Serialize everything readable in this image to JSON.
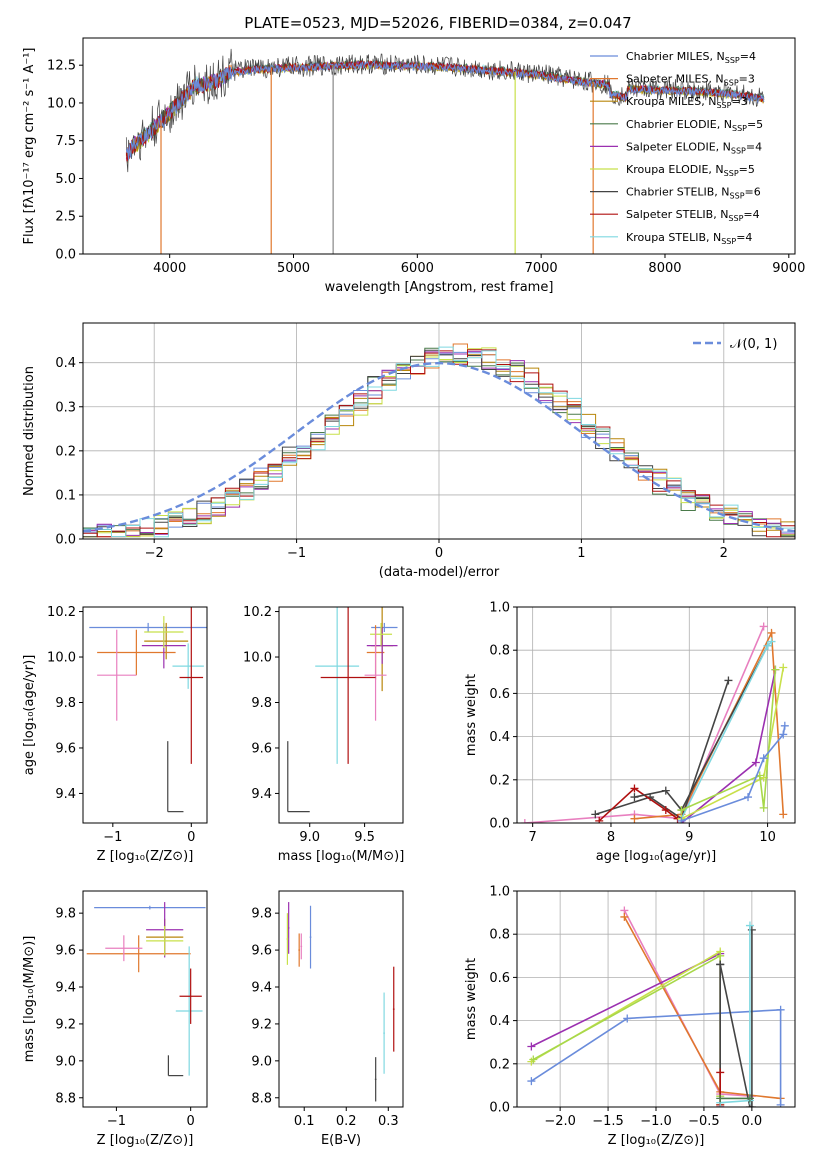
{
  "figure": {
    "title": "PLATE=0523, MJD=52026, FIBERID=0384, z=0.047"
  },
  "colors": {
    "chabrier_miles": "#6a8cdb",
    "salpeter_miles": "#e0782e",
    "kroupa_miles": "#b8860b",
    "chabrier_elodie": "#4a7a4a",
    "salpeter_elodie": "#9b30b0",
    "kroupa_elodie": "#c8e04a",
    "chabrier_stelib": "#444444",
    "salpeter_stelib": "#b01010",
    "kroupa_stelib": "#7fd8e0",
    "pink": "#e87fbf",
    "lime": "#a8d84a",
    "gray": "#888888"
  },
  "chart_data": [
    {
      "id": "spectrum",
      "type": "line",
      "xlabel": "wavelength [Angstrom, rest frame]",
      "ylabel": "Flux [fλ10⁻¹⁷ erg cm⁻² s⁻¹ A⁻¹]",
      "xlim": [
        3300,
        9050
      ],
      "ylim": [
        0,
        14.3
      ],
      "xticks": [
        4000,
        5000,
        6000,
        7000,
        8000,
        9000
      ],
      "xtick_labels": [
        "4000",
        "5000",
        "6000",
        "7000",
        "8000",
        "9000"
      ],
      "yticks": [
        0,
        2.5,
        5,
        7.5,
        10,
        12.5
      ],
      "ytick_labels": [
        "0.0",
        "2.5",
        "5.0",
        "7.5",
        "10.0",
        "12.5"
      ],
      "legend": [
        {
          "model": "Chabrier MILES",
          "n": "4",
          "color": "#6a8cdb"
        },
        {
          "model": "Salpeter MILES",
          "n": "3",
          "color": "#e0782e"
        },
        {
          "model": "Kroupa MILES",
          "n": "3",
          "color": "#b8860b"
        },
        {
          "model": "Chabrier ELODIE",
          "n": "5",
          "color": "#4a7a4a"
        },
        {
          "model": "Salpeter ELODIE",
          "n": "4",
          "color": "#9b30b0"
        },
        {
          "model": "Kroupa ELODIE",
          "n": "5",
          "color": "#c8e04a"
        },
        {
          "model": "Chabrier STELIB",
          "n": "6",
          "color": "#444444"
        },
        {
          "model": "Salpeter STELIB",
          "n": "4",
          "color": "#b01010"
        },
        {
          "model": "Kroupa STELIB",
          "n": "4",
          "color": "#7fd8e0"
        }
      ],
      "legend_nssp": "N",
      "legend_nssp_sub": "SSP",
      "legend_placement": "right",
      "envelope": {
        "x": [
          3650,
          3700,
          3800,
          3900,
          4000,
          4100,
          4200,
          4300,
          4400,
          4500,
          4700,
          5000,
          5300,
          5600,
          6000,
          6300,
          6600,
          7000,
          7300,
          7500,
          7700,
          8000,
          8300,
          8600,
          8800
        ],
        "y": [
          6.5,
          7.2,
          7.8,
          8.6,
          9.4,
          10.3,
          11.2,
          11.3,
          11.6,
          12.1,
          12.3,
          12.4,
          12.5,
          12.6,
          12.5,
          12.4,
          12.2,
          11.9,
          11.5,
          11.3,
          11.0,
          10.9,
          10.8,
          10.6,
          10.3
        ]
      },
      "drops": [
        {
          "x": 3930,
          "y": 0,
          "color": "#e0782e"
        },
        {
          "x": 4820,
          "y": 0,
          "color": "#e0782e"
        },
        {
          "x": 5320,
          "y": 0,
          "color": "#888888"
        },
        {
          "x": 6790,
          "y": 0,
          "color": "#c8e04a"
        },
        {
          "x": 7420,
          "y": 0,
          "color": "#e0782e"
        }
      ]
    },
    {
      "id": "residuals",
      "type": "line",
      "xlabel": "(data-model)/error",
      "ylabel": "Normed distribution",
      "xlim": [
        -2.5,
        2.5
      ],
      "ylim": [
        0,
        0.49
      ],
      "xticks": [
        -2,
        -1,
        0,
        1,
        2
      ],
      "xtick_labels": [
        "−2",
        "−1",
        "0",
        "1",
        "2"
      ],
      "yticks": [
        0,
        0.1,
        0.2,
        0.3,
        0.4
      ],
      "ytick_labels": [
        "0.0",
        "0.1",
        "0.2",
        "0.3",
        "0.4"
      ],
      "grid": true,
      "legend": [
        {
          "label": "𝒩(0, 1)",
          "color": "#6a8cdb"
        }
      ],
      "legend_placement": "top-right",
      "curve": {
        "name": "𝒩(0, 1)",
        "mu": 0,
        "sigma": 1
      },
      "bin_width": 0.1
    },
    {
      "id": "age-vs-z",
      "type": "scatter",
      "xlabel": "Z [log₁₀(Z/Z⊙)]",
      "ylabel": "age  [log₁₀(age/yr)]",
      "xlim": [
        -1.38,
        0.2
      ],
      "ylim": [
        9.27,
        10.22
      ],
      "xticks": [
        -1,
        0
      ],
      "xtick_labels": [
        "−1",
        "0"
      ],
      "yticks": [
        9.4,
        9.6,
        9.8,
        10.0,
        10.2
      ],
      "ytick_labels": [
        "9.4",
        "9.6",
        "9.8",
        "10.0",
        "10.2"
      ],
      "points": [
        {
          "x": -0.55,
          "y": 10.13,
          "xerr": 0.75,
          "yerr": 0.02,
          "color": "#6a8cdb"
        },
        {
          "x": -0.32,
          "y": 10.07,
          "xerr": 0.28,
          "yerr": 0.08,
          "color": "#b8860b"
        },
        {
          "x": -0.7,
          "y": 10.02,
          "xerr": 0.5,
          "yerr": 0.1,
          "color": "#e0782e"
        },
        {
          "x": -0.35,
          "y": 10.05,
          "xerr": 0.28,
          "yerr": 0.1,
          "color": "#9b30b0"
        },
        {
          "x": -0.35,
          "y": 10.11,
          "xerr": 0.25,
          "yerr": 0.07,
          "color": "#c8e04a"
        },
        {
          "x": -0.95,
          "y": 9.92,
          "xerr": 0.25,
          "yerr": 0.2,
          "color": "#e87fbf"
        },
        {
          "x": -0.04,
          "y": 9.96,
          "xerr": 0.2,
          "yerr": 0.1,
          "color": "#7fd8e0"
        },
        {
          "x": 0.0,
          "y": 9.91,
          "xerr": 0.15,
          "yerr": 0.38,
          "color": "#b01010"
        },
        {
          "x": -0.2,
          "y": 9.32,
          "xerr": 0.1,
          "yerr": 0.31,
          "color": "#444444",
          "half": true
        }
      ]
    },
    {
      "id": "age-vs-mass",
      "type": "scatter",
      "xlabel": "mass [log₁₀(M/M⊙)]",
      "ylabel": "",
      "xlim": [
        8.72,
        9.85
      ],
      "ylim": [
        9.27,
        10.22
      ],
      "xticks": [
        9.0,
        9.5
      ],
      "xtick_labels": [
        "9.0",
        "9.5"
      ],
      "yticks": [
        9.4,
        9.6,
        9.8,
        10.0,
        10.2
      ],
      "ytick_labels": [
        "9.4",
        "9.6",
        "9.8",
        "10.0",
        "10.2"
      ],
      "points": [
        {
          "x": 9.68,
          "y": 10.13,
          "xerr": 0.12,
          "yerr": 0.02,
          "color": "#6a8cdb"
        },
        {
          "x": 9.66,
          "y": 10.05,
          "xerr": 0.1,
          "yerr": 0.2,
          "color": "#b8860b"
        },
        {
          "x": 9.6,
          "y": 10.02,
          "xerr": 0.08,
          "yerr": 0.12,
          "color": "#e0782e"
        },
        {
          "x": 9.66,
          "y": 10.05,
          "xerr": 0.14,
          "yerr": 0.08,
          "color": "#9b30b0"
        },
        {
          "x": 9.65,
          "y": 10.1,
          "xerr": 0.1,
          "yerr": 0.05,
          "color": "#c8e04a"
        },
        {
          "x": 9.6,
          "y": 9.92,
          "xerr": 0.1,
          "yerr": 0.2,
          "color": "#e87fbf"
        },
        {
          "x": 9.25,
          "y": 9.96,
          "xerr": 0.2,
          "yerr": 0.43,
          "color": "#7fd8e0"
        },
        {
          "x": 9.35,
          "y": 9.91,
          "xerr": 0.25,
          "yerr": 0.38,
          "color": "#b01010"
        },
        {
          "x": 8.9,
          "y": 9.32,
          "xerr": 0.1,
          "yerr": 0.31,
          "color": "#444444",
          "half": true
        }
      ]
    },
    {
      "id": "mass-weight-vs-age",
      "type": "line",
      "xlabel": "age  [log₁₀(age/yr)]",
      "ylabel": "mass weight",
      "xlim": [
        6.8,
        10.35
      ],
      "ylim": [
        0,
        1.0
      ],
      "xticks": [
        7,
        8,
        9,
        10
      ],
      "xtick_labels": [
        "7",
        "8",
        "9",
        "10"
      ],
      "yticks": [
        0,
        0.2,
        0.4,
        0.6,
        0.8,
        1.0
      ],
      "ytick_labels": [
        "0.0",
        "0.2",
        "0.4",
        "0.6",
        "0.8",
        "1.0"
      ],
      "grid": true,
      "series": [
        {
          "color": "#e87fbf",
          "x": [
            6.9,
            8.3,
            8.9,
            9.95
          ],
          "y": [
            0.0,
            0.04,
            0.02,
            0.91
          ]
        },
        {
          "color": "#e0782e",
          "x": [
            8.3,
            8.9,
            10.05,
            10.2
          ],
          "y": [
            0.02,
            0.04,
            0.88,
            0.04
          ]
        },
        {
          "color": "#444444",
          "x": [
            7.8,
            8.5,
            8.9,
            9.5
          ],
          "y": [
            0.04,
            0.12,
            0.02,
            0.66
          ]
        },
        {
          "color": "#b01010",
          "x": [
            7.85,
            8.3,
            8.7,
            8.85
          ],
          "y": [
            0.01,
            0.16,
            0.06,
            0.02
          ]
        },
        {
          "color": "#444444",
          "x": [
            8.3,
            8.7,
            8.9,
            10.0
          ],
          "y": [
            0.12,
            0.15,
            0.06,
            0.82
          ]
        },
        {
          "color": "#7fd8e0",
          "x": [
            8.9,
            10.0,
            10.05
          ],
          "y": [
            0.02,
            0.82,
            0.84
          ]
        },
        {
          "color": "#9b30b0",
          "x": [
            8.9,
            9.85,
            10.1
          ],
          "y": [
            0.0,
            0.28,
            0.71
          ]
        },
        {
          "color": "#c8e04a",
          "x": [
            8.9,
            9.95,
            10.2
          ],
          "y": [
            0.02,
            0.21,
            0.72
          ]
        },
        {
          "color": "#a8d84a",
          "x": [
            8.9,
            9.9,
            9.95,
            10.1
          ],
          "y": [
            0.06,
            0.22,
            0.07,
            0.71
          ]
        },
        {
          "color": "#6a8cdb",
          "x": [
            8.9,
            9.75,
            9.95,
            10.2,
            10.22
          ],
          "y": [
            0.01,
            0.12,
            0.3,
            0.41,
            0.45
          ]
        }
      ]
    },
    {
      "id": "mass-vs-z",
      "type": "scatter",
      "xlabel": "Z [log₁₀(Z/Z⊙)]",
      "ylabel": "mass [log₁₀(M/M⊙)]",
      "xlim": [
        -1.45,
        0.22
      ],
      "ylim": [
        8.75,
        9.92
      ],
      "xticks": [
        -1,
        0
      ],
      "xtick_labels": [
        "−1",
        "0"
      ],
      "yticks": [
        8.8,
        9.0,
        9.2,
        9.4,
        9.6,
        9.8
      ],
      "ytick_labels": [
        "8.8",
        "9.0",
        "9.2",
        "9.4",
        "9.6",
        "9.8"
      ],
      "points": [
        {
          "x": -0.55,
          "y": 9.83,
          "xerr": 0.75,
          "yerr": 0.01,
          "color": "#6a8cdb"
        },
        {
          "x": -0.7,
          "y": 9.58,
          "xerr": 0.7,
          "yerr": 0.1,
          "color": "#e0782e"
        },
        {
          "x": -0.35,
          "y": 9.67,
          "xerr": 0.25,
          "yerr": 0.1,
          "color": "#b8860b"
        },
        {
          "x": -0.35,
          "y": 9.71,
          "xerr": 0.25,
          "yerr": 0.15,
          "color": "#9b30b0"
        },
        {
          "x": -0.35,
          "y": 9.65,
          "xerr": 0.25,
          "yerr": 0.08,
          "color": "#c8e04a"
        },
        {
          "x": -0.9,
          "y": 9.61,
          "xerr": 0.25,
          "yerr": 0.07,
          "color": "#e87fbf"
        },
        {
          "x": -0.02,
          "y": 9.27,
          "xerr": 0.18,
          "yerr": 0.35,
          "color": "#7fd8e0"
        },
        {
          "x": 0.0,
          "y": 9.35,
          "xerr": 0.15,
          "yerr": 0.15,
          "color": "#b01010"
        },
        {
          "x": -0.2,
          "y": 8.92,
          "xerr": 0.1,
          "yerr": 0.11,
          "color": "#444444",
          "half": true
        }
      ]
    },
    {
      "id": "mass-vs-ebv",
      "type": "scatter",
      "xlabel": "E(B-V)",
      "ylabel": "",
      "xlim": [
        0.04,
        0.335
      ],
      "ylim": [
        8.75,
        9.92
      ],
      "xticks": [
        0.1,
        0.2,
        0.3
      ],
      "xtick_labels": [
        "0.1",
        "0.2",
        "0.3"
      ],
      "yticks": [
        8.8,
        9.0,
        9.2,
        9.4,
        9.6,
        9.8
      ],
      "ytick_labels": [
        "8.8",
        "9.0",
        "9.2",
        "9.4",
        "9.6",
        "9.8"
      ],
      "points": [
        {
          "x": 0.063,
          "y": 9.72,
          "xerr": 0.002,
          "yerr": 0.14,
          "color": "#9b30b0"
        },
        {
          "x": 0.06,
          "y": 9.66,
          "xerr": 0.002,
          "yerr": 0.14,
          "color": "#c8e04a"
        },
        {
          "x": 0.088,
          "y": 9.6,
          "xerr": 0.002,
          "yerr": 0.09,
          "color": "#e0782e"
        },
        {
          "x": 0.093,
          "y": 9.62,
          "xerr": 0.002,
          "yerr": 0.07,
          "color": "#e87fbf"
        },
        {
          "x": 0.115,
          "y": 9.67,
          "xerr": 0.002,
          "yerr": 0.17,
          "color": "#6a8cdb"
        },
        {
          "x": 0.27,
          "y": 8.9,
          "xerr": 0.002,
          "yerr": 0.12,
          "color": "#444444"
        },
        {
          "x": 0.29,
          "y": 9.15,
          "xerr": 0.002,
          "yerr": 0.22,
          "color": "#7fd8e0"
        },
        {
          "x": 0.313,
          "y": 9.28,
          "xerr": 0.002,
          "yerr": 0.23,
          "color": "#b01010"
        }
      ]
    },
    {
      "id": "mass-weight-vs-z",
      "type": "line",
      "xlabel": "Z [log₁₀(Z/Z⊙)]",
      "ylabel": "mass weight",
      "xlim": [
        -2.45,
        0.45
      ],
      "ylim": [
        0,
        1.0
      ],
      "xticks": [
        -2.0,
        -1.5,
        -1.0,
        -0.5,
        0.0
      ],
      "xtick_labels": [
        "−2.0",
        "−1.5",
        "−1.0",
        "−0.5",
        "0.0"
      ],
      "yticks": [
        0,
        0.2,
        0.4,
        0.6,
        0.8,
        1.0
      ],
      "ytick_labels": [
        "0.0",
        "0.2",
        "0.4",
        "0.6",
        "0.8",
        "1.0"
      ],
      "grid": true,
      "series": [
        {
          "color": "#e87fbf",
          "x": [
            -1.33,
            -0.33,
            0.0
          ],
          "y": [
            0.91,
            0.06,
            0.05
          ]
        },
        {
          "color": "#e0782e",
          "x": [
            -1.33,
            -0.33,
            0.3
          ],
          "y": [
            0.88,
            0.07,
            0.04
          ]
        },
        {
          "color": "#9b30b0",
          "x": [
            -2.3,
            -0.33,
            -0.33
          ],
          "y": [
            0.28,
            0.71,
            0.0
          ]
        },
        {
          "color": "#c8e04a",
          "x": [
            -2.3,
            -0.33,
            -0.33
          ],
          "y": [
            0.21,
            0.72,
            0.01
          ]
        },
        {
          "color": "#a8d84a",
          "x": [
            -2.28,
            -0.33,
            -0.33
          ],
          "y": [
            0.22,
            0.7,
            0.05
          ]
        },
        {
          "color": "#6a8cdb",
          "x": [
            -2.3,
            -1.3,
            0.3,
            0.3
          ],
          "y": [
            0.12,
            0.41,
            0.45,
            0.01
          ]
        },
        {
          "color": "#444444",
          "x": [
            -0.33,
            -0.33,
            -0.33,
            -0.02,
            0.0,
            0.0
          ],
          "y": [
            0.66,
            0.0,
            0.66,
            0.0,
            0.0,
            0.82
          ]
        },
        {
          "color": "#b01010",
          "x": [
            -0.33,
            -0.33
          ],
          "y": [
            0.16,
            0.01
          ]
        },
        {
          "color": "#7fd8e0",
          "x": [
            -0.33,
            -0.02,
            -0.02
          ],
          "y": [
            0.02,
            0.03,
            0.84
          ]
        },
        {
          "color": "#4a7a4a",
          "x": [
            -0.33,
            -0.02
          ],
          "y": [
            0.04,
            0.04
          ]
        }
      ]
    }
  ]
}
